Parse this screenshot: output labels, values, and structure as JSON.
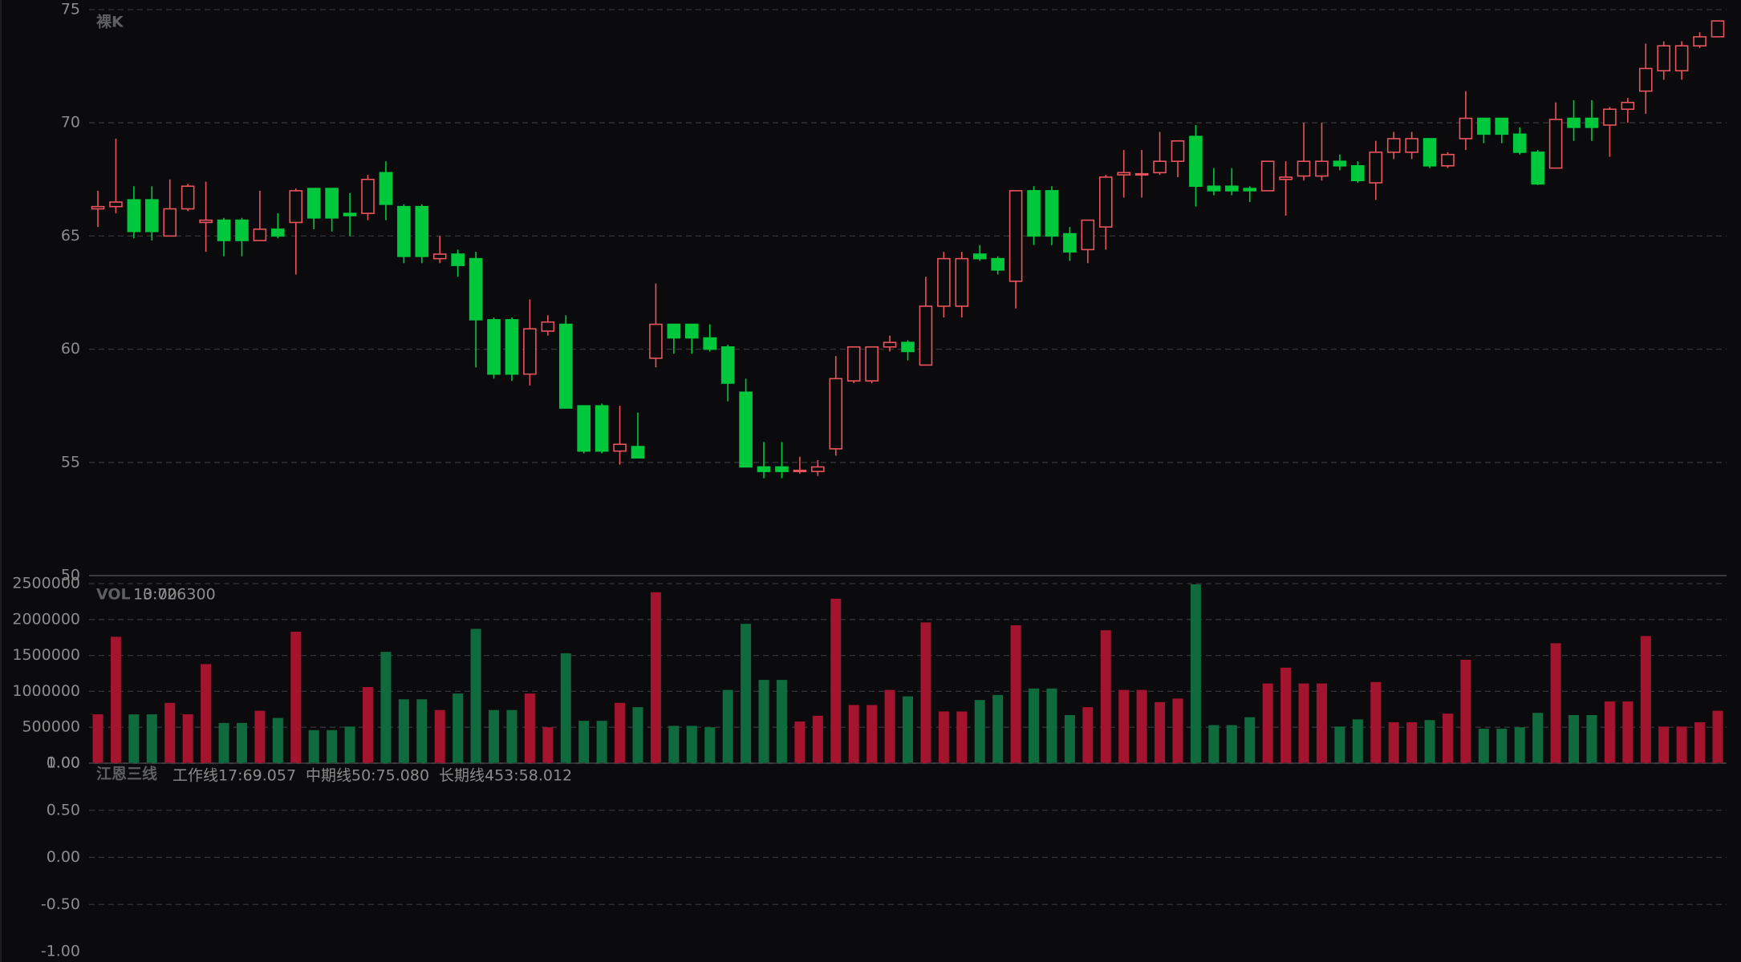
{
  "chart_data": [
    {
      "type": "candlestick",
      "title": "裸K",
      "up_color": "#e8545c",
      "down_color": "#00c83c",
      "open": [
        66.2,
        66.3,
        66.6,
        66.6,
        65.0,
        66.2,
        65.6,
        65.7,
        65.7,
        64.8,
        65.3,
        65.6,
        67.1,
        67.1,
        66.0,
        66.0,
        67.8,
        66.3,
        66.3,
        64.0,
        64.2,
        64.0,
        61.3,
        61.3,
        58.9,
        60.8,
        61.1,
        57.5,
        57.5,
        55.5,
        55.7,
        59.6,
        61.1,
        61.1,
        60.5,
        60.1,
        58.1,
        54.8,
        54.8,
        54.6,
        54.6,
        55.6,
        58.6,
        58.6,
        60.1,
        60.3,
        59.3,
        61.9,
        61.9,
        64.2,
        64.0,
        63.0,
        67.0,
        67.0,
        65.1,
        64.4,
        65.4,
        67.7,
        67.7,
        67.8,
        68.3,
        69.4,
        67.2,
        67.2,
        67.1,
        67.0,
        67.5,
        67.65,
        67.65,
        68.3,
        68.1,
        67.35,
        68.7,
        68.7,
        69.3,
        68.1,
        69.3,
        70.2,
        70.2,
        69.5,
        68.7,
        68.0,
        70.2,
        70.2,
        69.9,
        70.6,
        71.4,
        72.3,
        72.3,
        73.4,
        73.8
      ],
      "high": [
        67.0,
        69.3,
        67.2,
        67.2,
        67.5,
        67.3,
        67.4,
        65.8,
        65.8,
        67.0,
        66.0,
        67.1,
        67.1,
        67.1,
        66.9,
        67.7,
        68.3,
        66.4,
        66.4,
        65.0,
        64.4,
        64.3,
        61.4,
        61.4,
        62.2,
        61.5,
        61.5,
        57.5,
        57.6,
        57.5,
        57.2,
        62.9,
        61.1,
        61.1,
        61.1,
        60.2,
        58.7,
        55.9,
        55.9,
        55.25,
        55.1,
        59.7,
        60.1,
        60.1,
        60.6,
        60.4,
        63.2,
        64.3,
        64.3,
        64.6,
        64.1,
        67.0,
        67.2,
        67.2,
        65.4,
        65.7,
        67.7,
        68.8,
        68.8,
        69.6,
        69.2,
        69.9,
        68.0,
        68.0,
        67.2,
        68.3,
        68.3,
        70.0,
        70.0,
        68.6,
        68.3,
        69.2,
        69.6,
        69.6,
        69.3,
        68.7,
        71.4,
        70.2,
        70.2,
        69.8,
        68.8,
        70.9,
        71.0,
        71.0,
        70.7,
        71.1,
        73.5,
        73.6,
        73.6,
        74.0,
        74.5
      ],
      "low": [
        65.4,
        66.0,
        64.9,
        64.8,
        65.0,
        66.1,
        64.3,
        64.1,
        64.1,
        64.8,
        64.9,
        63.3,
        65.3,
        65.2,
        65.0,
        65.7,
        65.7,
        63.8,
        63.8,
        63.8,
        63.2,
        59.2,
        58.7,
        58.6,
        58.4,
        60.6,
        57.4,
        55.4,
        55.4,
        54.9,
        55.2,
        59.2,
        59.8,
        59.8,
        59.9,
        57.7,
        54.8,
        54.3,
        54.3,
        54.5,
        54.4,
        55.3,
        58.5,
        58.5,
        59.9,
        59.5,
        59.3,
        61.4,
        61.4,
        63.9,
        63.3,
        61.8,
        64.6,
        64.6,
        63.9,
        63.8,
        64.4,
        66.7,
        66.7,
        67.7,
        67.6,
        66.3,
        66.8,
        66.8,
        66.5,
        67.0,
        65.9,
        67.45,
        67.45,
        67.9,
        67.35,
        66.6,
        68.4,
        68.4,
        68.0,
        68.0,
        68.8,
        69.1,
        69.1,
        68.6,
        67.25,
        68.0,
        69.2,
        69.2,
        68.5,
        70.0,
        70.4,
        71.9,
        71.9,
        73.3,
        73.8
      ],
      "close": [
        66.3,
        66.5,
        65.2,
        65.2,
        66.2,
        67.2,
        65.7,
        64.8,
        64.8,
        65.3,
        65.0,
        67.0,
        65.8,
        65.8,
        65.9,
        67.5,
        66.4,
        64.1,
        64.1,
        64.2,
        63.7,
        61.3,
        58.9,
        58.9,
        60.9,
        61.2,
        57.4,
        55.5,
        55.5,
        55.8,
        55.2,
        61.1,
        60.5,
        60.5,
        60.0,
        58.5,
        54.8,
        54.6,
        54.6,
        54.65,
        54.8,
        58.7,
        60.1,
        60.1,
        60.3,
        59.9,
        61.9,
        64.0,
        64.0,
        64.0,
        63.5,
        67.0,
        65.0,
        65.0,
        64.3,
        65.7,
        67.6,
        67.8,
        67.75,
        68.3,
        69.2,
        67.2,
        67.0,
        67.0,
        67.0,
        68.3,
        67.6,
        68.3,
        68.3,
        68.1,
        67.45,
        68.7,
        69.3,
        69.3,
        68.1,
        68.6,
        70.2,
        69.5,
        69.5,
        68.7,
        67.3,
        70.15,
        69.8,
        69.8,
        70.6,
        70.9,
        72.4,
        73.4,
        73.4,
        73.8,
        74.5
      ],
      "ylim": [
        50,
        75
      ],
      "yticks": [
        50,
        55,
        60,
        65,
        70,
        75
      ],
      "grid": true
    },
    {
      "type": "bar",
      "title": "VOL",
      "annotations": [
        {
          "text": "13:00",
          "color": "#a0a0a0"
        },
        {
          "text": "0.726300",
          "color": "#b81c32"
        }
      ],
      "up_color": "#a3142f",
      "down_color": "#0f6a3d",
      "values": [
        680000,
        1760000,
        680000,
        680000,
        840000,
        680000,
        1380000,
        560000,
        560000,
        730000,
        630000,
        1830000,
        460000,
        460000,
        510000,
        1060000,
        1550000,
        890000,
        890000,
        740000,
        970000,
        1870000,
        740000,
        740000,
        970000,
        500000,
        1530000,
        590000,
        590000,
        840000,
        780000,
        2380000,
        520000,
        520000,
        500000,
        1020000,
        1940000,
        1160000,
        1160000,
        580000,
        660000,
        2290000,
        810000,
        810000,
        1020000,
        930000,
        1960000,
        720000,
        720000,
        880000,
        950000,
        1920000,
        1040000,
        1040000,
        670000,
        780000,
        1850000,
        1020000,
        1020000,
        850000,
        900000,
        2490000,
        530000,
        530000,
        640000,
        1110000,
        1330000,
        1110000,
        1110000,
        510000,
        610000,
        1130000,
        570000,
        570000,
        600000,
        690000,
        1440000,
        480000,
        480000,
        500000,
        700000,
        1670000,
        670000,
        670000,
        860000,
        860000,
        1770000,
        510000,
        510000,
        570000,
        730000
      ],
      "ylim": [
        0,
        2500000
      ],
      "yticks": [
        {
          "value": 0,
          "label": "0.00"
        },
        500000,
        1000000,
        1500000,
        2000000,
        2500000
      ],
      "grid": true
    },
    {
      "type": "line",
      "title": "江恩三线",
      "legend_items": [
        {
          "text": "工作线17:69.057",
          "color": "#f0e020"
        },
        {
          "text": "中期线50:75.080",
          "color": "#f0a020"
        },
        {
          "text": "长期线453:58.012",
          "color": "#d42020"
        }
      ],
      "ylim": [
        -1,
        1
      ],
      "yticks": [
        {
          "value": -1,
          "label": "-1.00"
        },
        {
          "value": -0.5,
          "label": "-0.50"
        },
        {
          "value": 0,
          "label": "0.00"
        },
        {
          "value": 0.5,
          "label": "0.50"
        },
        {
          "value": 1,
          "label": "1.00"
        }
      ],
      "grid": true
    }
  ]
}
